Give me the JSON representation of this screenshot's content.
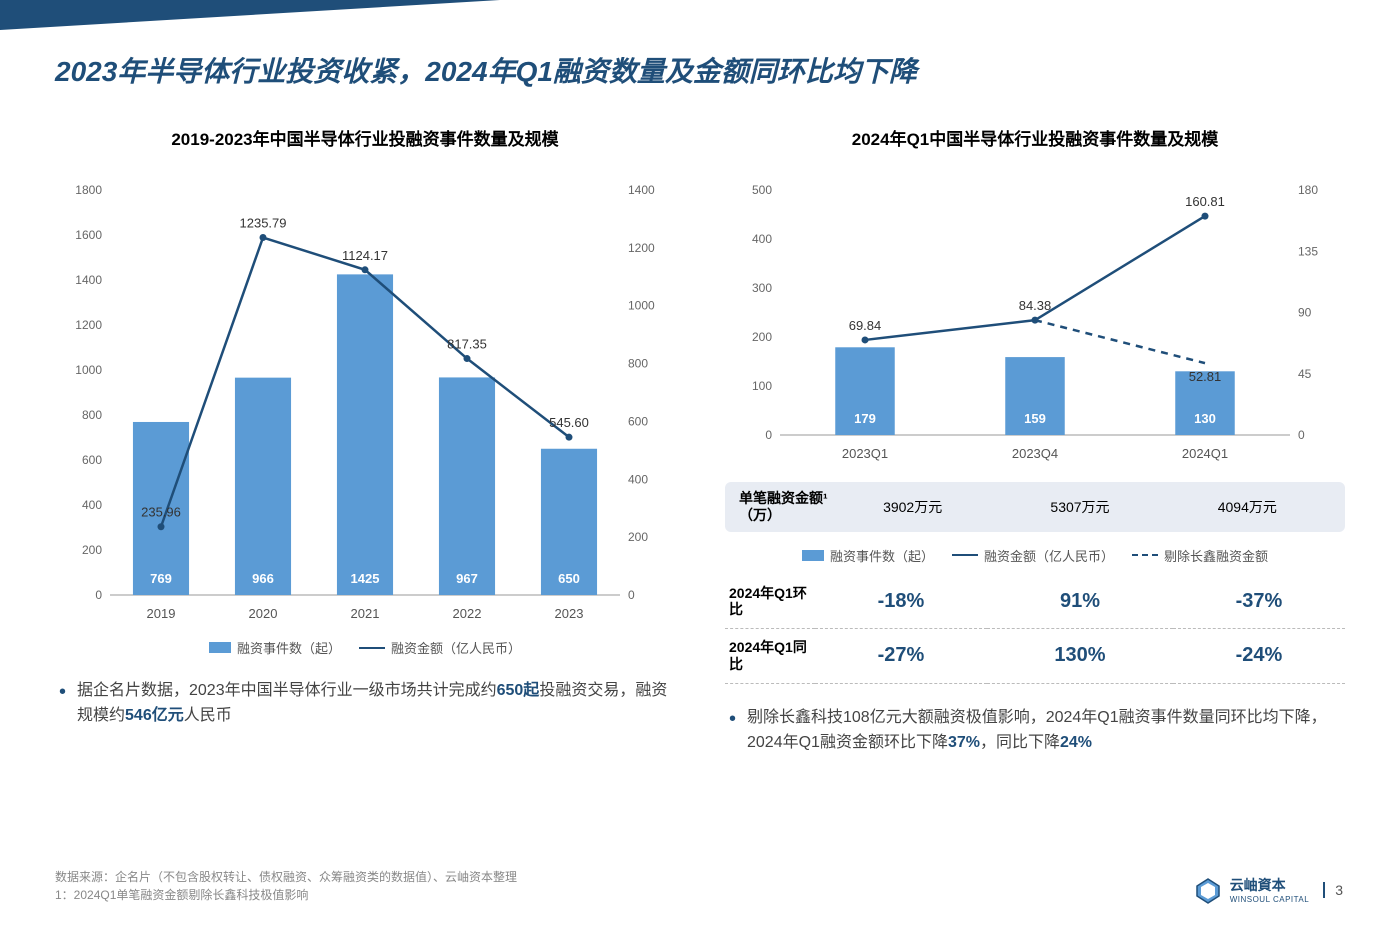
{
  "page_title": "2023年半导体行业投资收紧，2024年Q1融资数量及金额同环比均下降",
  "colors": {
    "title": "#1f4e79",
    "bar": "#5b9bd5",
    "line": "#1f4e79",
    "dash": "#1f4e79",
    "axis_text": "#666666",
    "grid": "#e0e0e0",
    "background": "#ffffff",
    "highlight": "#1f4e79",
    "infobox_bg": "#e8ecf3"
  },
  "left_chart": {
    "title": "2019-2023年中国半导体行业投融资事件数量及规模",
    "type": "bar+line",
    "categories": [
      "2019",
      "2020",
      "2021",
      "2022",
      "2023"
    ],
    "bar_values": [
      769,
      966,
      1425,
      967,
      650
    ],
    "line_values": [
      235.96,
      1235.79,
      1124.17,
      817.35,
      545.6
    ],
    "y_left": {
      "min": 0,
      "max": 1800,
      "step": 200
    },
    "y_right": {
      "min": 0,
      "max": 1400,
      "step": 200
    },
    "legend": {
      "bar": "融资事件数（起）",
      "line": "融资金额（亿人民币）"
    },
    "bar_color": "#5b9bd5",
    "line_color": "#1f4e79",
    "bar_width_ratio": 0.55
  },
  "right_chart": {
    "title": "2024年Q1中国半导体行业投融资事件数量及规模",
    "type": "bar+line+dash",
    "categories": [
      "2023Q1",
      "2023Q4",
      "2024Q1"
    ],
    "bar_values": [
      179,
      159,
      130
    ],
    "line_values": [
      69.84,
      84.38,
      160.81
    ],
    "dash_values": [
      null,
      84.38,
      52.81
    ],
    "y_left": {
      "min": 0,
      "max": 500,
      "step": 100
    },
    "y_right": {
      "min": 0,
      "max": 180,
      "step": 45
    },
    "legend": {
      "bar": "融资事件数（起）",
      "line": "融资金额（亿人民币）",
      "dash": "剔除长鑫融资金额"
    },
    "bar_color": "#5b9bd5",
    "line_color": "#1f4e79",
    "dash_color": "#1f4e79",
    "bar_width_ratio": 0.35
  },
  "single_deal": {
    "label": "单笔融资金额¹（万）",
    "values": [
      "3902万元",
      "5307万元",
      "4094万元"
    ]
  },
  "pct_rows": [
    {
      "header": "2024年Q1环比",
      "values": [
        "-18%",
        "91%",
        "-37%"
      ]
    },
    {
      "header": "2024年Q1同比",
      "values": [
        "-27%",
        "130%",
        "-24%"
      ]
    }
  ],
  "left_bullet": {
    "prefix": "据企名片数据，2023年中国半导体行业一级市场共计完成约",
    "hl1": "650起",
    "mid": "投融资交易，融资规模约",
    "hl2": "546亿元",
    "suffix": "人民币"
  },
  "right_bullet": {
    "prefix": "剔除长鑫科技108亿元大额融资极值影响，2024年Q1融资事件数量同环比均下降，2024年Q1融资金额环比下降",
    "hl1": "37%",
    "mid": "，同比下降",
    "hl2": "24%",
    "suffix": ""
  },
  "footer": {
    "line1": "数据来源：企名片（不包含股权转让、债权融资、众筹融资类的数据值）、云岫资本整理",
    "line2": "1：2024Q1单笔融资金额剔除长鑫科技极值影响"
  },
  "brand": {
    "name_cn": "云岫資本",
    "name_en": "WINSOUL CAPITAL",
    "page": "3"
  }
}
